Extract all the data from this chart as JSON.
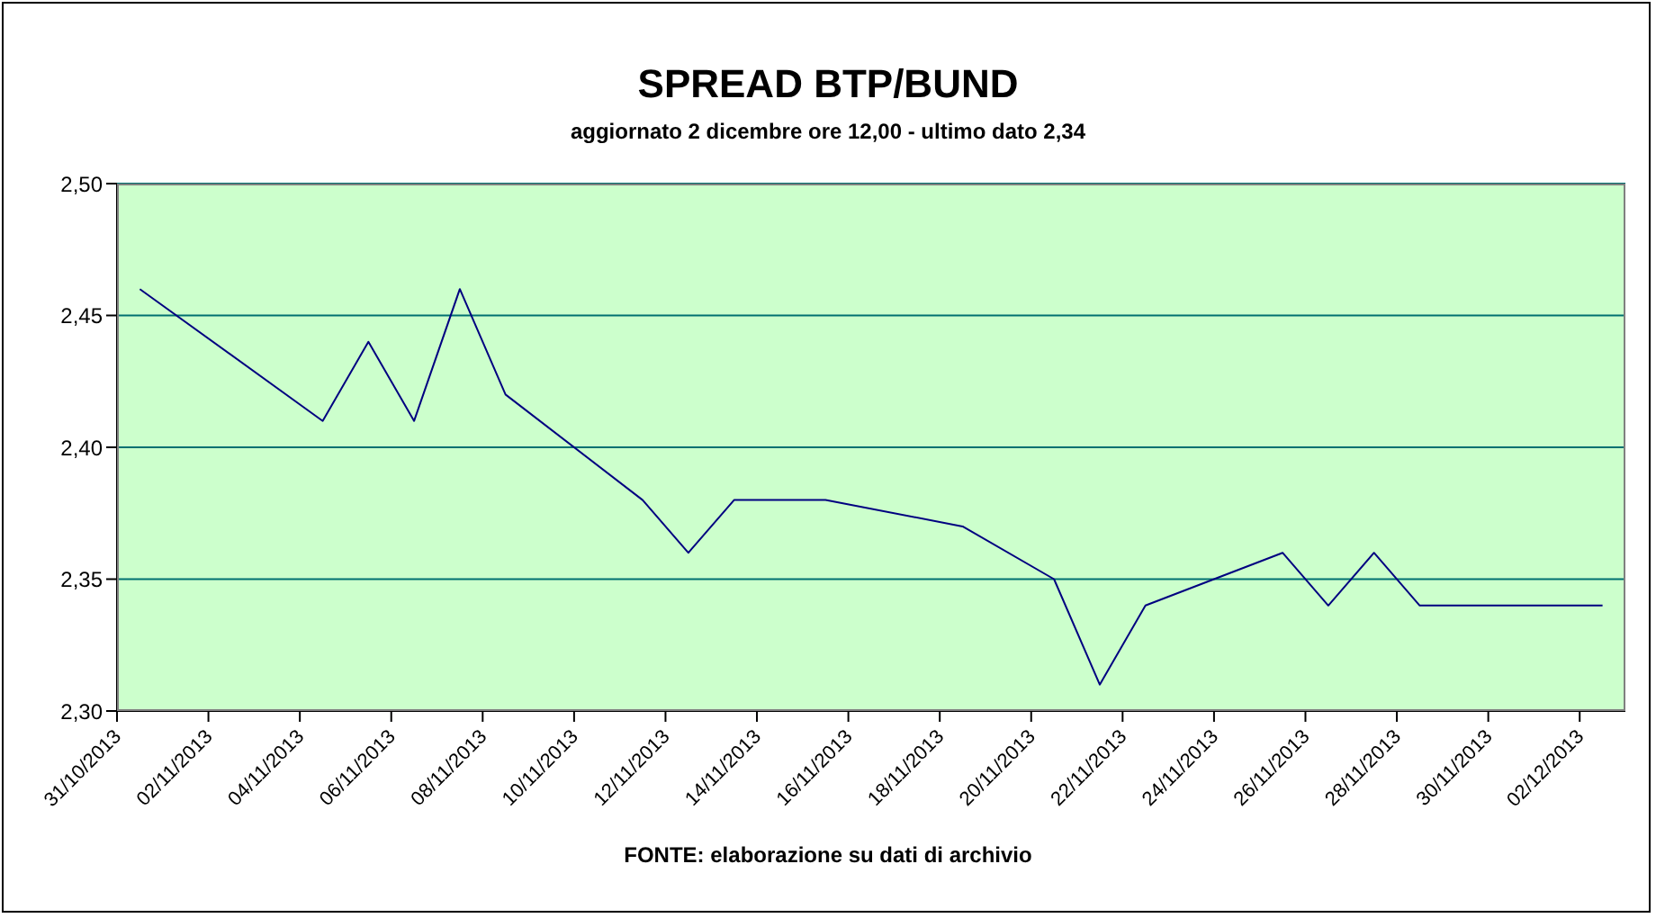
{
  "chart_data": {
    "type": "line",
    "title": "SPREAD BTP/BUND",
    "subtitle": "aggiornato 2 dicembre ore 12,00 - ultimo dato 2,34",
    "annotations": [
      "FONTE: elaborazione su dati di archivio"
    ],
    "x": [
      "2013-10-31T12:00",
      "2013-11-04T12:00",
      "2013-11-05T12:00",
      "2013-11-06T12:00",
      "2013-11-07T12:00",
      "2013-11-08T12:00",
      "2013-11-11T12:00",
      "2013-11-12T12:00",
      "2013-11-13T12:00",
      "2013-11-14T12:00",
      "2013-11-15T12:00",
      "2013-11-18T12:00",
      "2013-11-20T12:00",
      "2013-11-21T12:00",
      "2013-11-22T12:00",
      "2013-11-25T12:00",
      "2013-11-26T12:00",
      "2013-11-27T12:00",
      "2013-11-28T12:00",
      "2013-11-29T12:00",
      "2013-12-02T12:00"
    ],
    "series": [
      {
        "color": "#000080",
        "values": [
          2.46,
          2.41,
          2.44,
          2.41,
          2.46,
          2.42,
          2.38,
          2.36,
          2.38,
          2.38,
          2.38,
          2.37,
          2.35,
          2.31,
          2.34,
          2.36,
          2.34,
          2.36,
          2.34,
          2.34,
          2.34
        ]
      }
    ],
    "xlim": [
      "2013-10-31",
      "2013-12-03"
    ],
    "xticks": [
      {
        "value": "2013-10-31",
        "label": "31/10/2013"
      },
      {
        "value": "2013-11-02",
        "label": "02/11/2013"
      },
      {
        "value": "2013-11-04",
        "label": "04/11/2013"
      },
      {
        "value": "2013-11-06",
        "label": "06/11/2013"
      },
      {
        "value": "2013-11-08",
        "label": "08/11/2013"
      },
      {
        "value": "2013-11-10",
        "label": "10/11/2013"
      },
      {
        "value": "2013-11-12",
        "label": "12/11/2013"
      },
      {
        "value": "2013-11-14",
        "label": "14/11/2013"
      },
      {
        "value": "2013-11-16",
        "label": "16/11/2013"
      },
      {
        "value": "2013-11-18",
        "label": "18/11/2013"
      },
      {
        "value": "2013-11-20",
        "label": "20/11/2013"
      },
      {
        "value": "2013-11-22",
        "label": "22/11/2013"
      },
      {
        "value": "2013-11-24",
        "label": "24/11/2013"
      },
      {
        "value": "2013-11-26",
        "label": "26/11/2013"
      },
      {
        "value": "2013-11-28",
        "label": "28/11/2013"
      },
      {
        "value": "2013-11-30",
        "label": "30/11/2013"
      },
      {
        "value": "2013-12-02",
        "label": "02/12/2013"
      }
    ],
    "ylim": [
      2.3,
      2.5
    ],
    "yticks": [
      {
        "value": 2.3,
        "label": "2,30"
      },
      {
        "value": 2.35,
        "label": "2,35"
      },
      {
        "value": 2.4,
        "label": "2,40"
      },
      {
        "value": 2.45,
        "label": "2,45"
      },
      {
        "value": 2.5,
        "label": "2,50"
      }
    ],
    "grid": "y",
    "marker": "none",
    "line_style": "solid"
  }
}
